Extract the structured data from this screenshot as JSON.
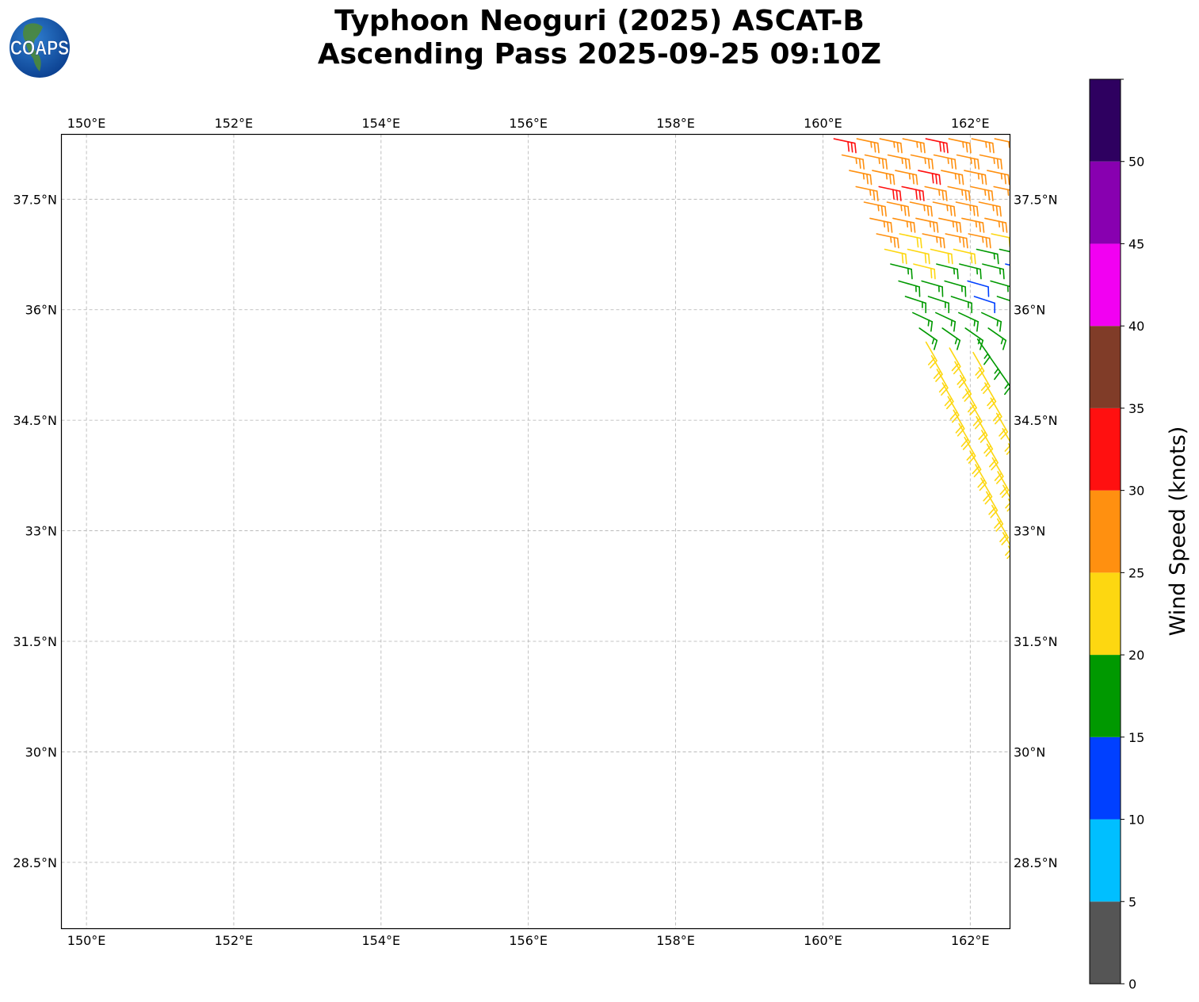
{
  "title": {
    "line1": "Typhoon Neoguri (2025) ASCAT-B",
    "line2": "Ascending Pass 2025-09-25 09:10Z"
  },
  "logo": {
    "text": "COAPS"
  },
  "chart_data": {
    "type": "wind-barb-map",
    "lon_range": [
      149.66,
      162.54
    ],
    "lat_range": [
      27.6,
      38.38
    ],
    "grid": true,
    "lon_ticks": [
      150,
      152,
      154,
      156,
      158,
      160,
      162
    ],
    "lon_tick_labels": [
      "150°E",
      "152°E",
      "154°E",
      "156°E",
      "158°E",
      "160°E",
      "162°E"
    ],
    "lat_ticks": [
      28.5,
      30,
      31.5,
      33,
      34.5,
      36,
      37.5
    ],
    "lat_tick_labels": [
      "28.5°N",
      "30°N",
      "31.5°N",
      "33°N",
      "34.5°N",
      "36°N",
      "37.5°N"
    ],
    "colorbar": {
      "label": "Wind Speed (knots)",
      "range": [
        0,
        55
      ],
      "ticks": [
        0,
        5,
        10,
        15,
        20,
        25,
        30,
        35,
        40,
        45,
        50
      ],
      "tick_labels": [
        "0",
        "5",
        "10",
        "15",
        "20",
        "25",
        "30",
        "35",
        "40",
        "45",
        "50"
      ],
      "bins": [
        {
          "min": 0,
          "max": 5,
          "color": "#555555"
        },
        {
          "min": 5,
          "max": 10,
          "color": "#00bfff"
        },
        {
          "min": 10,
          "max": 15,
          "color": "#0040ff"
        },
        {
          "min": 15,
          "max": 20,
          "color": "#009900"
        },
        {
          "min": 20,
          "max": 25,
          "color": "#fdd711"
        },
        {
          "min": 25,
          "max": 30,
          "color": "#ff9010"
        },
        {
          "min": 30,
          "max": 35,
          "color": "#ff1010"
        },
        {
          "min": 35,
          "max": 40,
          "color": "#803c28"
        },
        {
          "min": 40,
          "max": 45,
          "color": "#f200f2"
        },
        {
          "min": 45,
          "max": 50,
          "color": "#8800b0"
        },
        {
          "min": 50,
          "max": 55,
          "color": "#2e0060"
        }
      ]
    },
    "barb_rows": [
      {
        "lat": 38.32,
        "lon_start": 160.15,
        "lon_step": 0.312,
        "dir_deg": 102,
        "speeds_kt": [
          32,
          27,
          27,
          27,
          32,
          27,
          27,
          27
        ]
      },
      {
        "lat": 38.1,
        "lon_start": 160.26,
        "lon_step": 0.312,
        "dir_deg": 102,
        "speeds_kt": [
          27,
          27,
          27,
          27,
          27,
          27,
          27
        ]
      },
      {
        "lat": 37.89,
        "lon_start": 160.36,
        "lon_step": 0.312,
        "dir_deg": 102,
        "speeds_kt": [
          27,
          27,
          27,
          32,
          27,
          27,
          27
        ]
      },
      {
        "lat": 37.67,
        "lon_start": 160.45,
        "lon_step": 0.312,
        "dir_deg": 102,
        "speeds_kt": [
          27,
          32,
          32,
          27,
          27,
          27,
          27
        ]
      },
      {
        "lat": 37.46,
        "lon_start": 160.56,
        "lon_step": 0.312,
        "dir_deg": 102,
        "speeds_kt": [
          27,
          27,
          27,
          27,
          27,
          27
        ]
      },
      {
        "lat": 37.24,
        "lon_start": 160.64,
        "lon_step": 0.312,
        "dir_deg": 102,
        "speeds_kt": [
          27,
          27,
          27,
          27,
          27,
          27
        ]
      },
      {
        "lat": 37.03,
        "lon_start": 160.73,
        "lon_step": 0.312,
        "dir_deg": 102,
        "speeds_kt": [
          27,
          22,
          27,
          27,
          27,
          22,
          22
        ]
      },
      {
        "lat": 36.82,
        "lon_start": 160.84,
        "lon_step": 0.312,
        "dir_deg": 103,
        "speeds_kt": [
          22,
          22,
          22,
          22,
          17,
          17
        ]
      },
      {
        "lat": 36.62,
        "lon_start": 160.92,
        "lon_step": 0.312,
        "dir_deg": 104,
        "speeds_kt": [
          17,
          22,
          17,
          17,
          17,
          12
        ]
      },
      {
        "lat": 36.39,
        "lon_start": 161.03,
        "lon_step": 0.312,
        "dir_deg": 106,
        "speeds_kt": [
          17,
          17,
          17,
          12,
          17
        ]
      },
      {
        "lat": 36.18,
        "lon_start": 161.12,
        "lon_step": 0.312,
        "dir_deg": 108,
        "speeds_kt": [
          17,
          17,
          17,
          12,
          17
        ]
      },
      {
        "lat": 35.96,
        "lon_start": 161.22,
        "lon_step": 0.312,
        "dir_deg": 115,
        "speeds_kt": [
          17,
          17,
          17,
          17
        ]
      },
      {
        "lat": 35.75,
        "lon_start": 161.31,
        "lon_step": 0.312,
        "dir_deg": 125,
        "speeds_kt": [
          17,
          17,
          17,
          17
        ]
      }
    ],
    "barb_tracks": [
      {
        "lat_start": 35.56,
        "lon_start": 161.4,
        "lat_end": 32.79,
        "lon_end": 162.52,
        "count": 16,
        "speed_kt": 22,
        "dir_deg": 150
      },
      {
        "lat_start": 35.48,
        "lon_start": 161.72,
        "lat_end": 33.43,
        "lon_end": 162.52,
        "count": 12,
        "speed_kt": 22,
        "dir_deg": 150
      },
      {
        "lat_start": 35.42,
        "lon_start": 162.04,
        "lat_end": 34.18,
        "lon_end": 162.52,
        "count": 7,
        "speed_kt": 22,
        "dir_deg": 150
      },
      {
        "lat_start": 35.6,
        "lon_start": 162.1,
        "lat_end": 34.99,
        "lon_end": 162.52,
        "count": 4,
        "speed_kt": 17,
        "dir_deg": 145
      }
    ]
  }
}
